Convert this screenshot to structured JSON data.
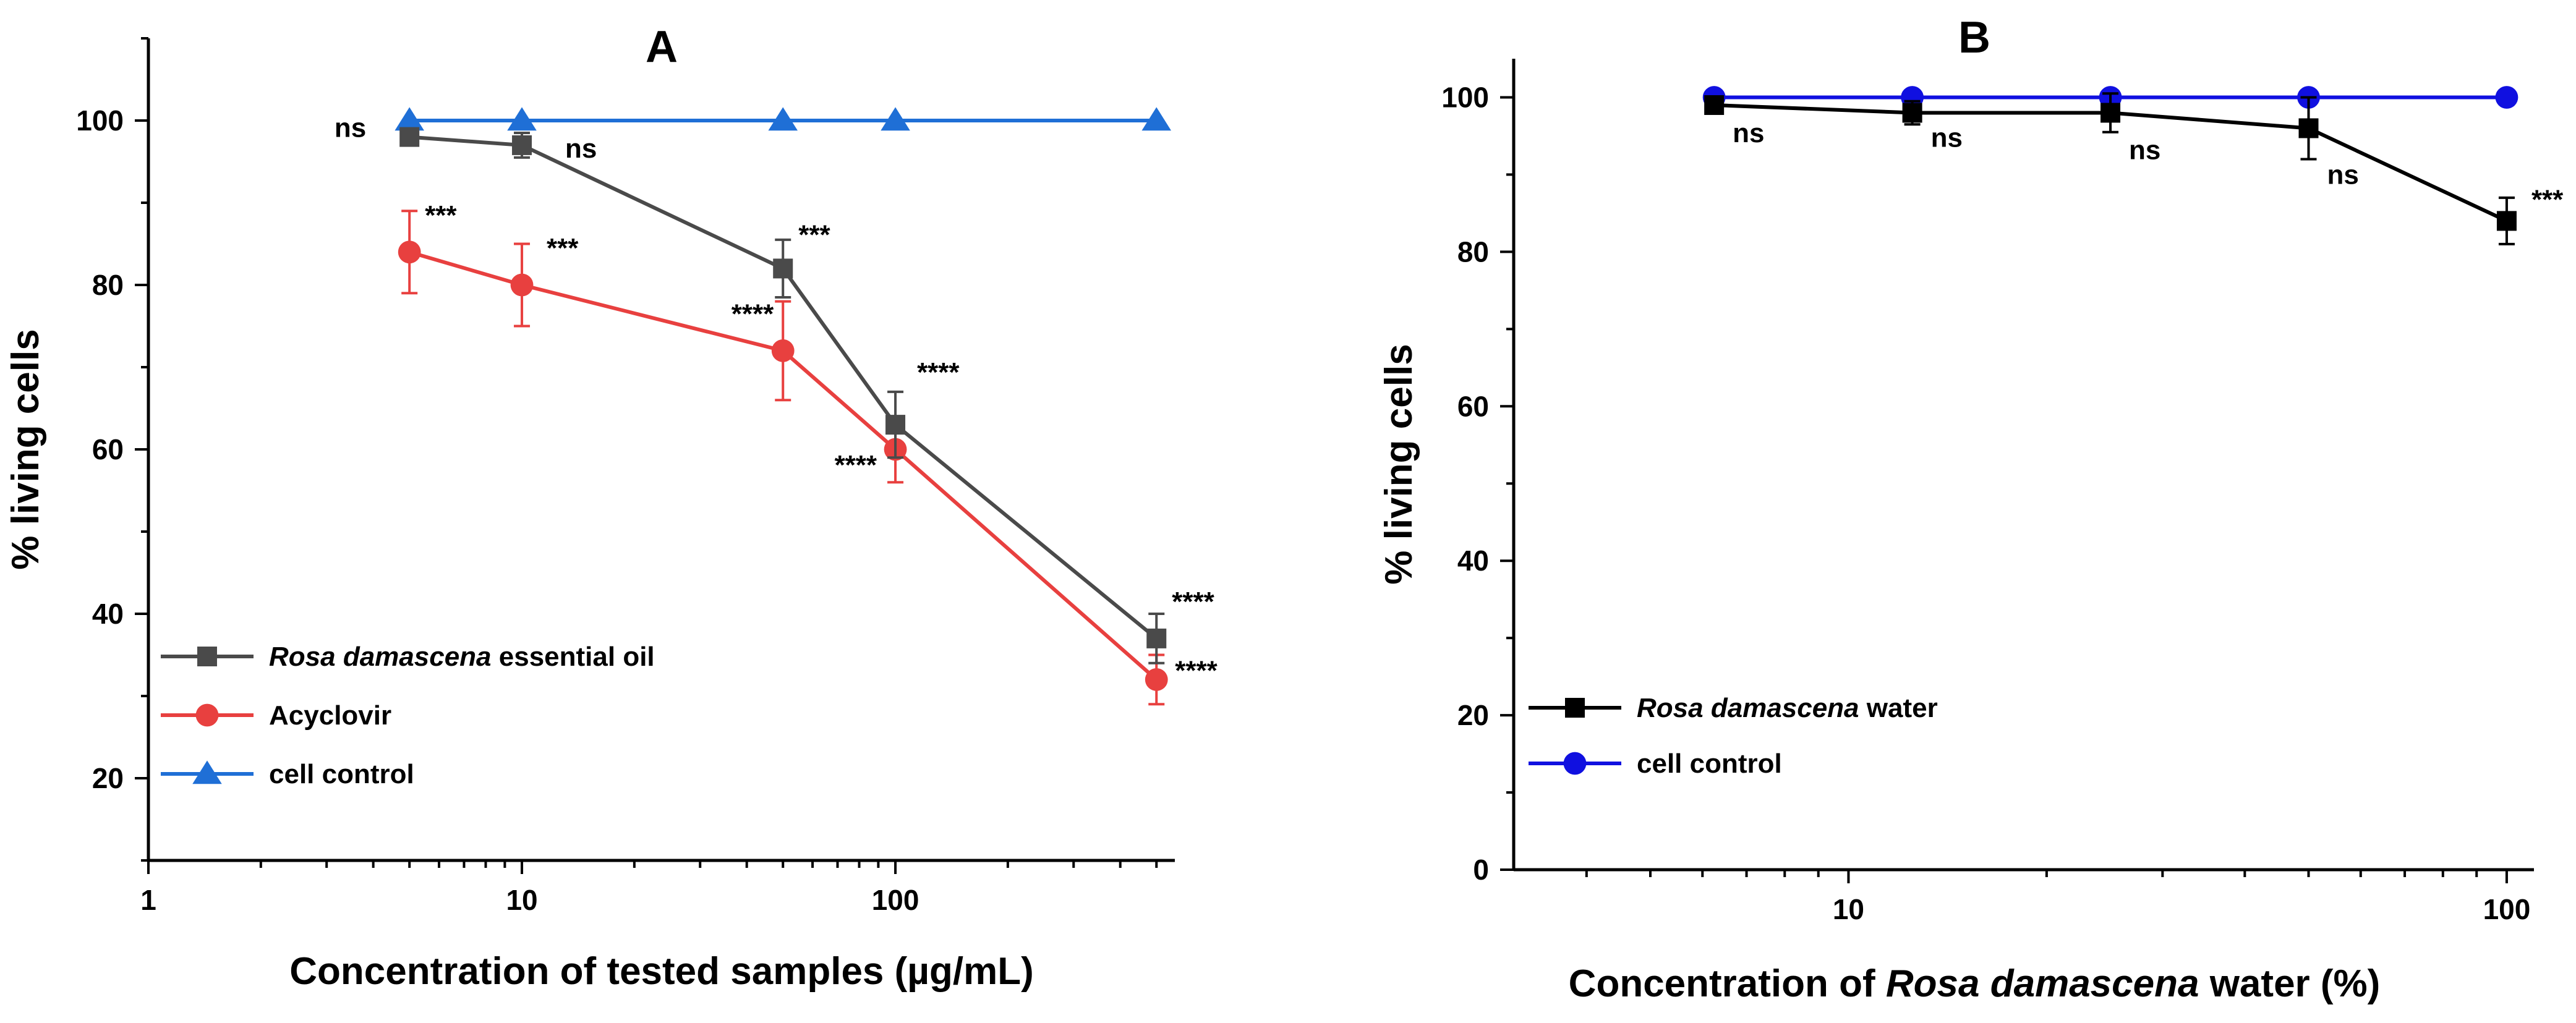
{
  "chart_data": [
    {
      "panel": "A",
      "title": "A",
      "type": "line",
      "xlabel": "Concentration of tested samples (µg/mL)",
      "ylabel": "% living cells",
      "x_scale": "log",
      "xlim": [
        1,
        560
      ],
      "ylim": [
        10,
        110
      ],
      "x_ticks": [
        1,
        10,
        100
      ],
      "x_tick_labels": [
        "1",
        "10",
        "100"
      ],
      "y_ticks": [
        20,
        40,
        60,
        80,
        100
      ],
      "y_tick_labels": [
        "20",
        "40",
        "60",
        "80",
        "100"
      ],
      "legend_position": "bottom-left",
      "series": [
        {
          "name_italic": "Rosa damascena",
          "name_rest": " essential oil",
          "color": "#4a4a4a",
          "marker": "square",
          "x": [
            5,
            10,
            50,
            100,
            500
          ],
          "y": [
            98,
            97,
            82,
            63,
            37
          ],
          "err": [
            0,
            1.5,
            3.5,
            4,
            3
          ],
          "sig": [
            "ns",
            "ns",
            "***",
            "****",
            "****"
          ]
        },
        {
          "name": "Acyclovir",
          "color": "#e8403f",
          "marker": "circle",
          "x": [
            5,
            10,
            50,
            100,
            500
          ],
          "y": [
            84,
            80,
            72,
            60,
            32
          ],
          "err": [
            5,
            5,
            6,
            4,
            3
          ],
          "sig": [
            "***",
            "***",
            "****",
            "****",
            "****"
          ]
        },
        {
          "name": "cell control",
          "color": "#1f6fd6",
          "marker": "triangle",
          "x": [
            5,
            10,
            50,
            100,
            500
          ],
          "y": [
            100,
            100,
            100,
            100,
            100
          ],
          "err": [
            0,
            0,
            0,
            0,
            0
          ],
          "sig": [
            "",
            "",
            "",
            "",
            ""
          ]
        }
      ]
    },
    {
      "panel": "B",
      "title": "B",
      "type": "line",
      "xlabel_pre": "Concentration of ",
      "xlabel_italic": "Rosa damascena",
      "xlabel_post": " water (%)",
      "ylabel": "% living cells",
      "x_scale": "log",
      "xlim": [
        3.1,
        110
      ],
      "ylim": [
        0,
        105
      ],
      "x_ticks": [
        10,
        100
      ],
      "x_tick_labels": [
        "10",
        "100"
      ],
      "y_ticks": [
        0,
        20,
        40,
        60,
        80,
        100
      ],
      "y_tick_labels": [
        "0",
        "20",
        "40",
        "60",
        "80",
        "100"
      ],
      "legend_position": "bottom-left",
      "series": [
        {
          "name_italic": "Rosa damascena",
          "name_rest": " water",
          "color": "#000000",
          "marker": "square",
          "x": [
            6.25,
            12.5,
            25,
            50,
            100
          ],
          "y": [
            99,
            98,
            98,
            96,
            84
          ],
          "err": [
            1,
            1.5,
            2.5,
            4,
            3
          ],
          "sig": [
            "ns",
            "ns",
            "ns",
            "ns",
            "***"
          ]
        },
        {
          "name": "cell control",
          "color": "#1010e0",
          "marker": "circle",
          "x": [
            6.25,
            12.5,
            25,
            50,
            100
          ],
          "y": [
            100,
            100,
            100,
            100,
            100
          ],
          "err": [
            0,
            0,
            0,
            0,
            0
          ],
          "sig": [
            "",
            "",
            "",
            "",
            ""
          ]
        }
      ]
    }
  ]
}
